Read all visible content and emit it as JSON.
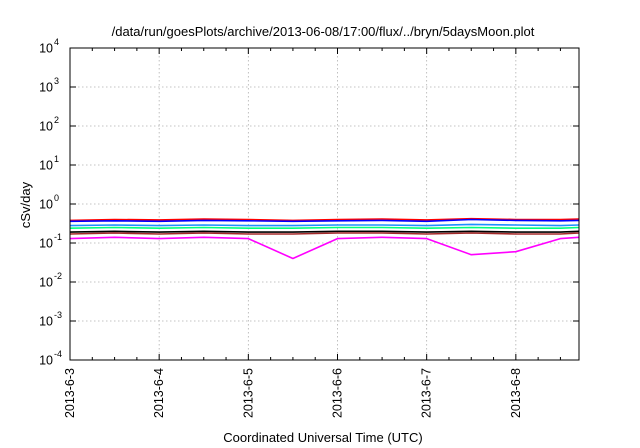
{
  "chart_data": {
    "type": "line",
    "title": "/data/run/goesPlots/archive/2013-06-08/17:00/flux/../bryn/5daysMoon.plot",
    "xlabel": "Coordinated Universal Time (UTC)",
    "ylabel": "cSv/day",
    "y_scale": "log",
    "ylim": [
      0.0001,
      10000
    ],
    "y_ticks": [
      {
        "base": "10",
        "exp": "4"
      },
      {
        "base": "10",
        "exp": "3"
      },
      {
        "base": "10",
        "exp": "2"
      },
      {
        "base": "10",
        "exp": "1"
      },
      {
        "base": "10",
        "exp": "0"
      },
      {
        "base": "10",
        "exp": "-1"
      },
      {
        "base": "10",
        "exp": "-2"
      },
      {
        "base": "10",
        "exp": "-3"
      },
      {
        "base": "10",
        "exp": "-4"
      }
    ],
    "x_ticks": [
      "2013-6-3",
      "2013-6-4",
      "2013-6-5",
      "2013-6-6",
      "2013-6-7",
      "2013-6-8"
    ],
    "xlim": [
      "2013-06-03 00:00",
      "2013-06-08 17:00"
    ],
    "grid": true,
    "legend": "none",
    "x": [
      "2013-06-03 00:00",
      "2013-06-03 12:00",
      "2013-06-04 00:00",
      "2013-06-04 12:00",
      "2013-06-05 00:00",
      "2013-06-05 12:00",
      "2013-06-06 00:00",
      "2013-06-06 12:00",
      "2013-06-07 00:00",
      "2013-06-07 12:00",
      "2013-06-08 00:00",
      "2013-06-08 12:00",
      "2013-06-08 17:00"
    ],
    "series": [
      {
        "color": "#ff0000",
        "values": [
          0.38,
          0.4,
          0.39,
          0.41,
          0.4,
          0.38,
          0.4,
          0.41,
          0.39,
          0.42,
          0.4,
          0.4,
          0.41
        ]
      },
      {
        "color": "#0000ff",
        "values": [
          0.36,
          0.37,
          0.36,
          0.38,
          0.37,
          0.36,
          0.37,
          0.38,
          0.36,
          0.4,
          0.38,
          0.37,
          0.38
        ]
      },
      {
        "color": "#1e90ff",
        "values": [
          0.28,
          0.29,
          0.28,
          0.29,
          0.28,
          0.28,
          0.29,
          0.29,
          0.28,
          0.3,
          0.29,
          0.28,
          0.29
        ]
      },
      {
        "color": "#00ff7f",
        "values": [
          0.24,
          0.25,
          0.24,
          0.25,
          0.24,
          0.24,
          0.25,
          0.25,
          0.24,
          0.25,
          0.24,
          0.24,
          0.25
        ]
      },
      {
        "color": "#000000",
        "values": [
          0.19,
          0.2,
          0.19,
          0.2,
          0.19,
          0.19,
          0.2,
          0.2,
          0.19,
          0.2,
          0.19,
          0.19,
          0.2
        ]
      },
      {
        "color": "#a52a2a",
        "values": [
          0.17,
          0.18,
          0.17,
          0.18,
          0.17,
          0.17,
          0.18,
          0.18,
          0.17,
          0.18,
          0.17,
          0.17,
          0.18
        ]
      },
      {
        "color": "#ff00ff",
        "values": [
          0.13,
          0.14,
          0.13,
          0.14,
          0.13,
          0.04,
          0.13,
          0.14,
          0.13,
          0.05,
          0.06,
          0.13,
          0.14
        ]
      }
    ]
  }
}
